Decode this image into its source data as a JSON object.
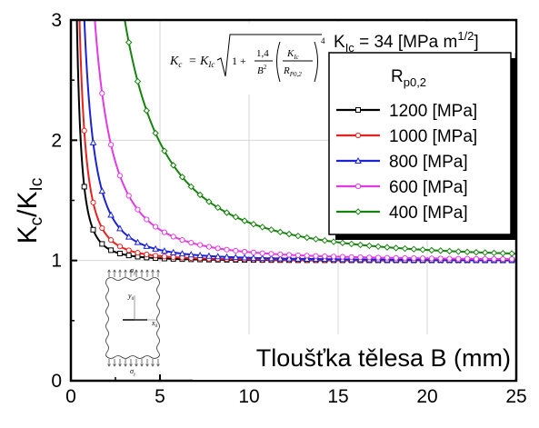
{
  "chart_data": {
    "type": "line",
    "xlabel": "Tloušťka tělesa B (mm)",
    "ylabel_main": "K",
    "ylabel_sub1": "c",
    "ylabel_slash": "/K",
    "ylabel_sub2": "Ic",
    "xlim": [
      0,
      25
    ],
    "ylim": [
      0,
      3
    ],
    "xticks": [
      "0",
      "5",
      "10",
      "15",
      "20",
      "25"
    ],
    "yticks": [
      "0",
      "1",
      "2",
      "3"
    ],
    "grid": true,
    "legend_position": "top-right",
    "kic_label_main": "K",
    "kic_label_sub": "Ic",
    "kic_label_value": " = 34 [MPa m",
    "kic_label_exp": "1/2",
    "kic_label_close": "]",
    "legend_title_main": "R",
    "legend_title_sub": "p0,2",
    "formula": {
      "lhs": "K",
      "lhs_sub": "c",
      "eq": "=",
      "k": "K",
      "k_sub": "Ic",
      "one_plus": "1 +",
      "num": "1,4",
      "den_b": "B",
      "den_exp": "2",
      "inner_num": "K",
      "inner_num_sub": "Ic",
      "inner_den": "R",
      "inner_den_sub": "P0,2",
      "outer_exp": "4"
    },
    "series": [
      {
        "name": "1200 [MPa]",
        "color": "#000000",
        "marker": "square",
        "rp": 1200
      },
      {
        "name": "1000 [MPa]",
        "color": "#e8201e",
        "marker": "circle",
        "rp": 1000
      },
      {
        "name": "800 [MPa]",
        "color": "#1c22d6",
        "marker": "triangle",
        "rp": 800
      },
      {
        "name": "600 [MPa]",
        "color": "#e23be0",
        "marker": "circle",
        "rp": 600
      },
      {
        "name": "400 [MPa]",
        "color": "#17820f",
        "marker": "diamond",
        "rp": 400
      }
    ],
    "kic": 34,
    "inset": {
      "sigma_top": "σ",
      "sigma_top_sub": "y",
      "sigma_bottom": "σ",
      "sigma_bottom_sub": "y",
      "y_axis": "y",
      "y_axis_sub": "0",
      "x_axis": "x",
      "x_axis_sub": "0"
    }
  }
}
